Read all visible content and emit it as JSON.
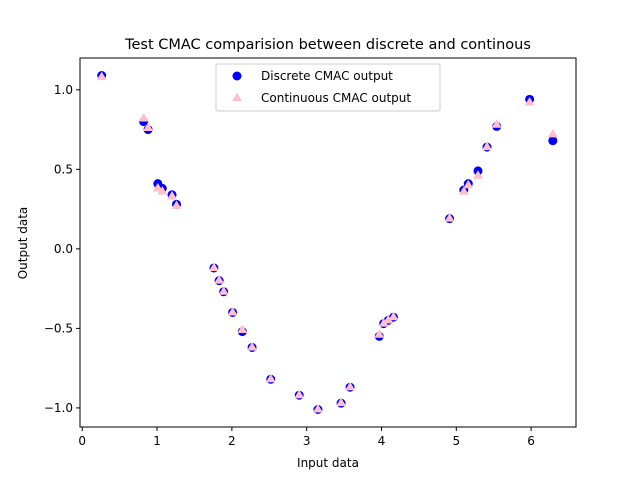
{
  "chart_data": {
    "type": "scatter",
    "title": "Test CMAC comparision between discrete and continous",
    "xlabel": "Input data",
    "ylabel": "Output data",
    "xlim": [
      -0.03,
      6.6
    ],
    "ylim": [
      -1.12,
      1.2
    ],
    "xticks": [
      0,
      1,
      2,
      3,
      4,
      5,
      6
    ],
    "xtick_labels": [
      "0",
      "1",
      "2",
      "3",
      "4",
      "5",
      "6"
    ],
    "yticks": [
      1.0,
      0.5,
      0.0,
      -0.5,
      -1.0
    ],
    "ytick_labels": [
      "1.0",
      "0.5",
      "0.0",
      "−0.5",
      "−1.0"
    ],
    "grid": false,
    "legend_position": "top-center",
    "series": [
      {
        "name": "Discrete CMAC output",
        "marker": "circle",
        "color": "#0000ff",
        "points": [
          [
            0.26,
            1.09
          ],
          [
            0.82,
            0.8
          ],
          [
            0.88,
            0.75
          ],
          [
            1.01,
            0.41
          ],
          [
            1.07,
            0.38
          ],
          [
            1.2,
            0.34
          ],
          [
            1.26,
            0.28
          ],
          [
            1.76,
            -0.12
          ],
          [
            1.83,
            -0.2
          ],
          [
            1.89,
            -0.27
          ],
          [
            2.01,
            -0.4
          ],
          [
            2.14,
            -0.52
          ],
          [
            2.27,
            -0.62
          ],
          [
            2.52,
            -0.82
          ],
          [
            2.9,
            -0.92
          ],
          [
            3.15,
            -1.01
          ],
          [
            3.46,
            -0.97
          ],
          [
            3.58,
            -0.87
          ],
          [
            3.97,
            -0.55
          ],
          [
            4.03,
            -0.47
          ],
          [
            4.09,
            -0.45
          ],
          [
            4.16,
            -0.43
          ],
          [
            4.91,
            0.19
          ],
          [
            5.1,
            0.37
          ],
          [
            5.16,
            0.41
          ],
          [
            5.29,
            0.49
          ],
          [
            5.41,
            0.64
          ],
          [
            5.54,
            0.77
          ],
          [
            5.98,
            0.94
          ],
          [
            6.29,
            0.68
          ]
        ]
      },
      {
        "name": "Continuous CMAC output",
        "marker": "triangle",
        "color": "#ffc0cb",
        "points": [
          [
            0.26,
            1.08
          ],
          [
            0.82,
            0.82
          ],
          [
            0.88,
            0.76
          ],
          [
            1.01,
            0.38
          ],
          [
            1.07,
            0.36
          ],
          [
            1.2,
            0.33
          ],
          [
            1.26,
            0.27
          ],
          [
            1.76,
            -0.12
          ],
          [
            1.83,
            -0.2
          ],
          [
            1.89,
            -0.27
          ],
          [
            2.01,
            -0.4
          ],
          [
            2.14,
            -0.51
          ],
          [
            2.27,
            -0.62
          ],
          [
            2.52,
            -0.82
          ],
          [
            2.9,
            -0.92
          ],
          [
            3.15,
            -1.01
          ],
          [
            3.46,
            -0.97
          ],
          [
            3.58,
            -0.87
          ],
          [
            3.97,
            -0.54
          ],
          [
            4.03,
            -0.47
          ],
          [
            4.09,
            -0.45
          ],
          [
            4.16,
            -0.43
          ],
          [
            4.91,
            0.19
          ],
          [
            5.1,
            0.36
          ],
          [
            5.16,
            0.4
          ],
          [
            5.29,
            0.46
          ],
          [
            5.41,
            0.64
          ],
          [
            5.54,
            0.78
          ],
          [
            5.98,
            0.92
          ],
          [
            6.29,
            0.72
          ]
        ]
      }
    ]
  }
}
